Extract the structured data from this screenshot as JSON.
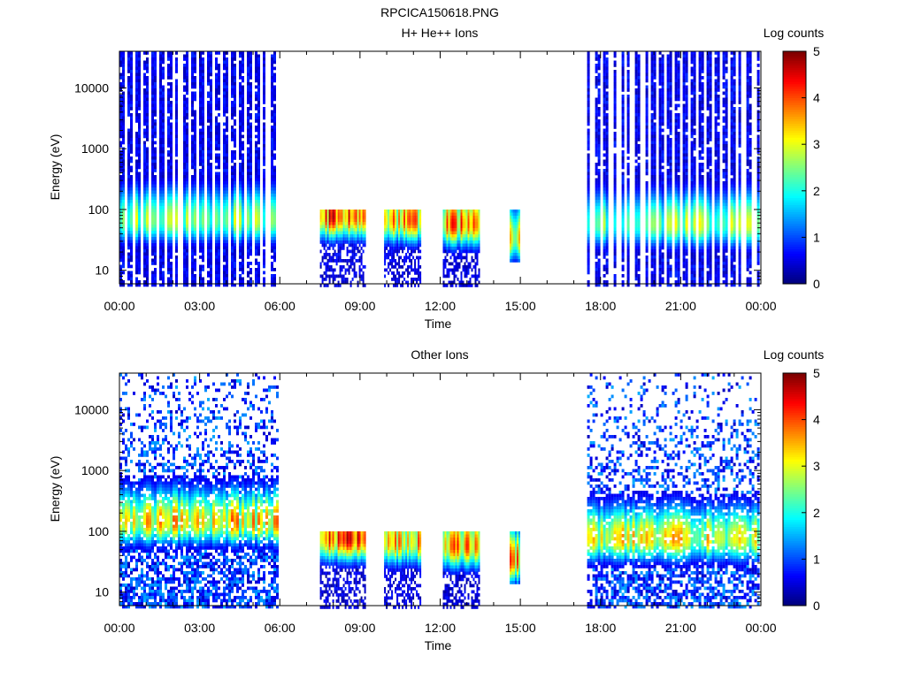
{
  "page": {
    "title": "RPCICA150618.PNG"
  },
  "colors": {
    "colormap": [
      "#00007f",
      "#0000ff",
      "#007fff",
      "#00ffff",
      "#7fff7f",
      "#ffff00",
      "#ff7f00",
      "#ff0000",
      "#7f0000"
    ],
    "axes": "#000000",
    "background": "#ffffff"
  },
  "chart_data": [
    {
      "type": "heatmap",
      "title": "H+ He++ Ions",
      "xlabel": "Time",
      "ylabel": "Energy (eV)",
      "x_ticks": [
        "00:00",
        "03:00",
        "06:00",
        "09:00",
        "12:00",
        "15:00",
        "18:00",
        "21:00",
        "00:00"
      ],
      "x_range_hours": [
        0,
        24
      ],
      "y_scale": "log",
      "y_range": [
        6,
        40000
      ],
      "y_ticks": [
        "10",
        "100",
        "1000",
        "10000"
      ],
      "colorbar": {
        "label": "Log counts",
        "range": [
          0,
          5
        ],
        "ticks": [
          "0",
          "1",
          "2",
          "3",
          "4",
          "5"
        ]
      },
      "data_blocks": [
        {
          "hours": [
            0.0,
            6.0
          ],
          "energy": [
            6,
            40000
          ],
          "peak_energy": 70,
          "peak_log_counts": 3.2,
          "pattern": "striped"
        },
        {
          "hours": [
            7.5,
            9.2
          ],
          "energy": [
            6,
            100
          ],
          "peak_energy": 80,
          "peak_log_counts": 5.0,
          "pattern": "dense"
        },
        {
          "hours": [
            9.9,
            11.3
          ],
          "energy": [
            6,
            100
          ],
          "peak_energy": 70,
          "peak_log_counts": 4.3,
          "pattern": "dense"
        },
        {
          "hours": [
            12.1,
            13.5
          ],
          "energy": [
            6,
            100
          ],
          "peak_energy": 60,
          "peak_log_counts": 4.5,
          "pattern": "dense"
        },
        {
          "hours": [
            14.6,
            15.0
          ],
          "energy": [
            15,
            100
          ],
          "peak_energy": 35,
          "peak_log_counts": 4.3,
          "pattern": "dense"
        },
        {
          "hours": [
            17.5,
            24.0
          ],
          "energy": [
            6,
            40000
          ],
          "peak_energy": 60,
          "peak_log_counts": 3.2,
          "pattern": "striped"
        }
      ]
    },
    {
      "type": "heatmap",
      "title": "Other Ions",
      "xlabel": "Time",
      "ylabel": "Energy (eV)",
      "x_ticks": [
        "00:00",
        "03:00",
        "06:00",
        "09:00",
        "12:00",
        "15:00",
        "18:00",
        "21:00",
        "00:00"
      ],
      "x_range_hours": [
        0,
        24
      ],
      "y_scale": "log",
      "y_range": [
        6,
        40000
      ],
      "y_ticks": [
        "10",
        "100",
        "1000",
        "10000"
      ],
      "colorbar": {
        "label": "Log counts",
        "range": [
          0,
          5
        ],
        "ticks": [
          "0",
          "1",
          "2",
          "3",
          "4",
          "5"
        ]
      },
      "data_blocks": [
        {
          "hours": [
            0.0,
            6.0
          ],
          "energy": [
            6,
            40000
          ],
          "peak_energy": 150,
          "peak_log_counts": 4.1,
          "pattern": "sparse"
        },
        {
          "hours": [
            7.5,
            9.2
          ],
          "energy": [
            6,
            100
          ],
          "peak_energy": 80,
          "peak_log_counts": 5.0,
          "pattern": "dense"
        },
        {
          "hours": [
            9.9,
            11.3
          ],
          "energy": [
            6,
            100
          ],
          "peak_energy": 70,
          "peak_log_counts": 4.2,
          "pattern": "dense"
        },
        {
          "hours": [
            12.1,
            13.5
          ],
          "energy": [
            6,
            100
          ],
          "peak_energy": 60,
          "peak_log_counts": 4.4,
          "pattern": "dense"
        },
        {
          "hours": [
            14.6,
            15.0
          ],
          "energy": [
            15,
            100
          ],
          "peak_energy": 35,
          "peak_log_counts": 4.3,
          "pattern": "dense"
        },
        {
          "hours": [
            17.5,
            24.0
          ],
          "energy": [
            6,
            40000
          ],
          "peak_energy": 80,
          "peak_log_counts": 3.8,
          "pattern": "sparse"
        }
      ]
    }
  ]
}
